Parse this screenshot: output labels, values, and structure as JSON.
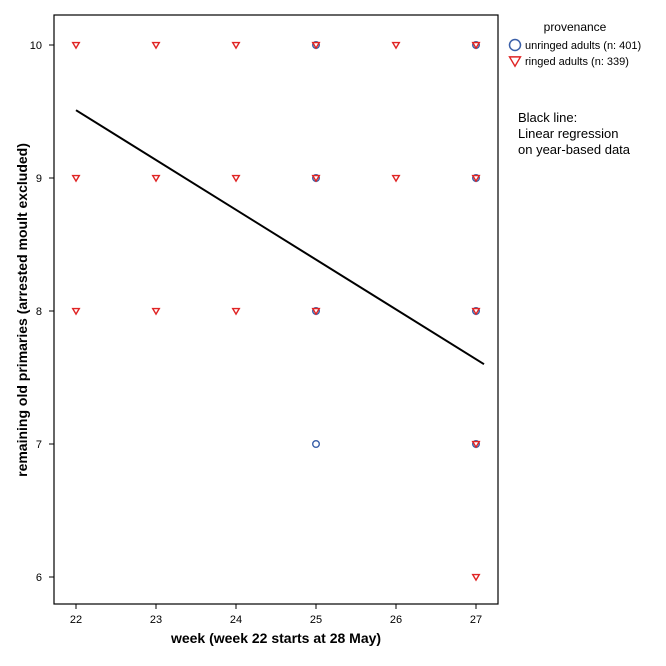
{
  "chart_data": {
    "type": "scatter",
    "xlabel": "week (week 22 starts at 28 May)",
    "ylabel": "remaining old primaries (arrested moult excluded)",
    "xlim": [
      21.7,
      27.3
    ],
    "ylim": [
      5.8,
      10.2
    ],
    "xticks": [
      22,
      23,
      24,
      25,
      26,
      27
    ],
    "yticks": [
      6,
      7,
      8,
      9,
      10
    ],
    "grid": false,
    "legend": {
      "title": "provenance",
      "placement": "top-right, outside plot",
      "entries": [
        {
          "label": "unringed adults (n: 401)",
          "marker": "circle",
          "color": "#3a5fa8"
        },
        {
          "label": "ringed adults (n: 339)",
          "marker": "triangle-down",
          "color": "#e02424"
        }
      ]
    },
    "series": [
      {
        "name": "unringed adults (n: 401)",
        "marker": "circle",
        "color": "#3a5fa8",
        "points": [
          {
            "x": 25,
            "y": 10
          },
          {
            "x": 27,
            "y": 10
          },
          {
            "x": 25,
            "y": 9
          },
          {
            "x": 27,
            "y": 9
          },
          {
            "x": 25,
            "y": 8
          },
          {
            "x": 27,
            "y": 8
          },
          {
            "x": 25,
            "y": 7
          },
          {
            "x": 27,
            "y": 7
          }
        ]
      },
      {
        "name": "ringed adults (n: 339)",
        "marker": "triangle-down",
        "color": "#e02424",
        "points": [
          {
            "x": 22,
            "y": 10
          },
          {
            "x": 23,
            "y": 10
          },
          {
            "x": 24,
            "y": 10
          },
          {
            "x": 25,
            "y": 10
          },
          {
            "x": 26,
            "y": 10
          },
          {
            "x": 27,
            "y": 10
          },
          {
            "x": 22,
            "y": 9
          },
          {
            "x": 23,
            "y": 9
          },
          {
            "x": 24,
            "y": 9
          },
          {
            "x": 25,
            "y": 9
          },
          {
            "x": 26,
            "y": 9
          },
          {
            "x": 27,
            "y": 9
          },
          {
            "x": 22,
            "y": 8
          },
          {
            "x": 23,
            "y": 8
          },
          {
            "x": 24,
            "y": 8
          },
          {
            "x": 25,
            "y": 8
          },
          {
            "x": 27,
            "y": 8
          },
          {
            "x": 27,
            "y": 7
          },
          {
            "x": 27,
            "y": 6
          }
        ]
      }
    ],
    "regression_line": {
      "x": [
        22,
        27.1
      ],
      "y": [
        9.51,
        7.6
      ],
      "color": "#000000"
    },
    "annotation": [
      "Black line:",
      "Linear regression",
      "on year-based data"
    ]
  }
}
